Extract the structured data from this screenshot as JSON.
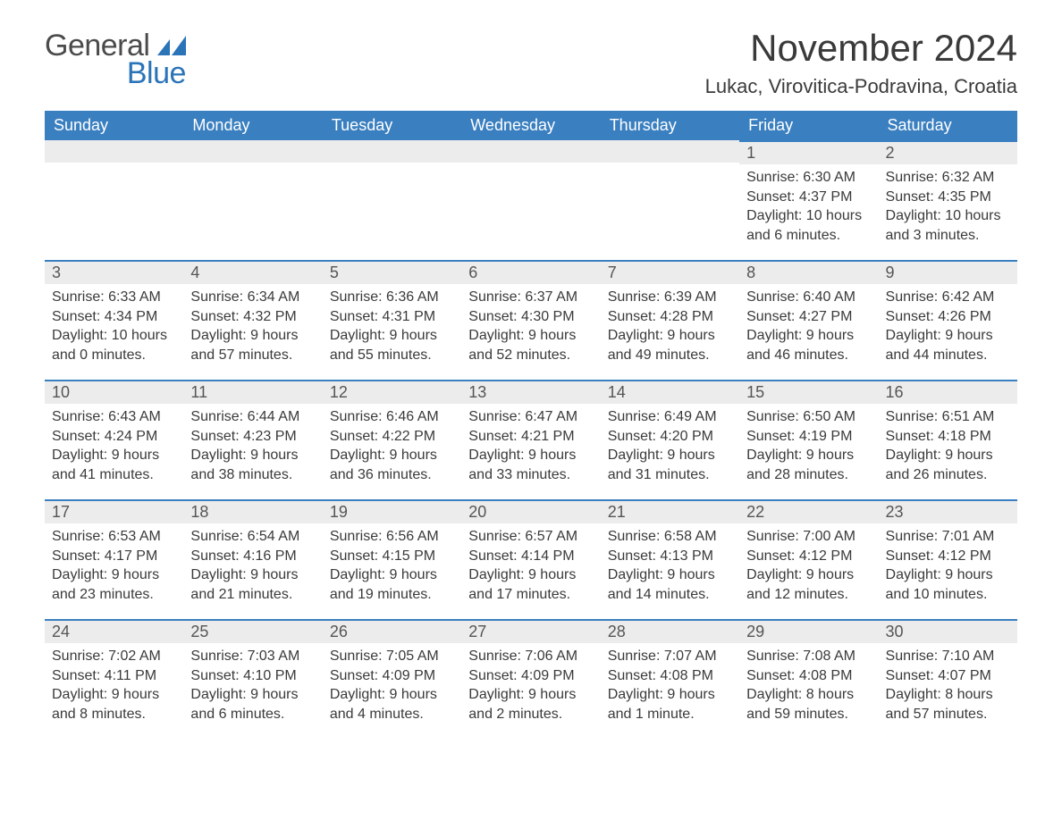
{
  "brand": {
    "general": "General",
    "blue": "Blue"
  },
  "title": "November 2024",
  "location": "Lukac, Virovitica-Podravina, Croatia",
  "colors": {
    "header_bg": "#3a7fc0",
    "header_text": "#ffffff",
    "daynum_bg": "#ececec",
    "daynum_border": "#3a7fc0",
    "body_text": "#3a3a3a",
    "logo_gray": "#4b4b4b",
    "logo_blue": "#2b74b8",
    "page_bg": "#ffffff"
  },
  "weekdays": [
    "Sunday",
    "Monday",
    "Tuesday",
    "Wednesday",
    "Thursday",
    "Friday",
    "Saturday"
  ],
  "weeks": [
    [
      null,
      null,
      null,
      null,
      null,
      {
        "num": "1",
        "sunrise": "Sunrise: 6:30 AM",
        "sunset": "Sunset: 4:37 PM",
        "daylight": "Daylight: 10 hours and 6 minutes."
      },
      {
        "num": "2",
        "sunrise": "Sunrise: 6:32 AM",
        "sunset": "Sunset: 4:35 PM",
        "daylight": "Daylight: 10 hours and 3 minutes."
      }
    ],
    [
      {
        "num": "3",
        "sunrise": "Sunrise: 6:33 AM",
        "sunset": "Sunset: 4:34 PM",
        "daylight": "Daylight: 10 hours and 0 minutes."
      },
      {
        "num": "4",
        "sunrise": "Sunrise: 6:34 AM",
        "sunset": "Sunset: 4:32 PM",
        "daylight": "Daylight: 9 hours and 57 minutes."
      },
      {
        "num": "5",
        "sunrise": "Sunrise: 6:36 AM",
        "sunset": "Sunset: 4:31 PM",
        "daylight": "Daylight: 9 hours and 55 minutes."
      },
      {
        "num": "6",
        "sunrise": "Sunrise: 6:37 AM",
        "sunset": "Sunset: 4:30 PM",
        "daylight": "Daylight: 9 hours and 52 minutes."
      },
      {
        "num": "7",
        "sunrise": "Sunrise: 6:39 AM",
        "sunset": "Sunset: 4:28 PM",
        "daylight": "Daylight: 9 hours and 49 minutes."
      },
      {
        "num": "8",
        "sunrise": "Sunrise: 6:40 AM",
        "sunset": "Sunset: 4:27 PM",
        "daylight": "Daylight: 9 hours and 46 minutes."
      },
      {
        "num": "9",
        "sunrise": "Sunrise: 6:42 AM",
        "sunset": "Sunset: 4:26 PM",
        "daylight": "Daylight: 9 hours and 44 minutes."
      }
    ],
    [
      {
        "num": "10",
        "sunrise": "Sunrise: 6:43 AM",
        "sunset": "Sunset: 4:24 PM",
        "daylight": "Daylight: 9 hours and 41 minutes."
      },
      {
        "num": "11",
        "sunrise": "Sunrise: 6:44 AM",
        "sunset": "Sunset: 4:23 PM",
        "daylight": "Daylight: 9 hours and 38 minutes."
      },
      {
        "num": "12",
        "sunrise": "Sunrise: 6:46 AM",
        "sunset": "Sunset: 4:22 PM",
        "daylight": "Daylight: 9 hours and 36 minutes."
      },
      {
        "num": "13",
        "sunrise": "Sunrise: 6:47 AM",
        "sunset": "Sunset: 4:21 PM",
        "daylight": "Daylight: 9 hours and 33 minutes."
      },
      {
        "num": "14",
        "sunrise": "Sunrise: 6:49 AM",
        "sunset": "Sunset: 4:20 PM",
        "daylight": "Daylight: 9 hours and 31 minutes."
      },
      {
        "num": "15",
        "sunrise": "Sunrise: 6:50 AM",
        "sunset": "Sunset: 4:19 PM",
        "daylight": "Daylight: 9 hours and 28 minutes."
      },
      {
        "num": "16",
        "sunrise": "Sunrise: 6:51 AM",
        "sunset": "Sunset: 4:18 PM",
        "daylight": "Daylight: 9 hours and 26 minutes."
      }
    ],
    [
      {
        "num": "17",
        "sunrise": "Sunrise: 6:53 AM",
        "sunset": "Sunset: 4:17 PM",
        "daylight": "Daylight: 9 hours and 23 minutes."
      },
      {
        "num": "18",
        "sunrise": "Sunrise: 6:54 AM",
        "sunset": "Sunset: 4:16 PM",
        "daylight": "Daylight: 9 hours and 21 minutes."
      },
      {
        "num": "19",
        "sunrise": "Sunrise: 6:56 AM",
        "sunset": "Sunset: 4:15 PM",
        "daylight": "Daylight: 9 hours and 19 minutes."
      },
      {
        "num": "20",
        "sunrise": "Sunrise: 6:57 AM",
        "sunset": "Sunset: 4:14 PM",
        "daylight": "Daylight: 9 hours and 17 minutes."
      },
      {
        "num": "21",
        "sunrise": "Sunrise: 6:58 AM",
        "sunset": "Sunset: 4:13 PM",
        "daylight": "Daylight: 9 hours and 14 minutes."
      },
      {
        "num": "22",
        "sunrise": "Sunrise: 7:00 AM",
        "sunset": "Sunset: 4:12 PM",
        "daylight": "Daylight: 9 hours and 12 minutes."
      },
      {
        "num": "23",
        "sunrise": "Sunrise: 7:01 AM",
        "sunset": "Sunset: 4:12 PM",
        "daylight": "Daylight: 9 hours and 10 minutes."
      }
    ],
    [
      {
        "num": "24",
        "sunrise": "Sunrise: 7:02 AM",
        "sunset": "Sunset: 4:11 PM",
        "daylight": "Daylight: 9 hours and 8 minutes."
      },
      {
        "num": "25",
        "sunrise": "Sunrise: 7:03 AM",
        "sunset": "Sunset: 4:10 PM",
        "daylight": "Daylight: 9 hours and 6 minutes."
      },
      {
        "num": "26",
        "sunrise": "Sunrise: 7:05 AM",
        "sunset": "Sunset: 4:09 PM",
        "daylight": "Daylight: 9 hours and 4 minutes."
      },
      {
        "num": "27",
        "sunrise": "Sunrise: 7:06 AM",
        "sunset": "Sunset: 4:09 PM",
        "daylight": "Daylight: 9 hours and 2 minutes."
      },
      {
        "num": "28",
        "sunrise": "Sunrise: 7:07 AM",
        "sunset": "Sunset: 4:08 PM",
        "daylight": "Daylight: 9 hours and 1 minute."
      },
      {
        "num": "29",
        "sunrise": "Sunrise: 7:08 AM",
        "sunset": "Sunset: 4:08 PM",
        "daylight": "Daylight: 8 hours and 59 minutes."
      },
      {
        "num": "30",
        "sunrise": "Sunrise: 7:10 AM",
        "sunset": "Sunset: 4:07 PM",
        "daylight": "Daylight: 8 hours and 57 minutes."
      }
    ]
  ]
}
